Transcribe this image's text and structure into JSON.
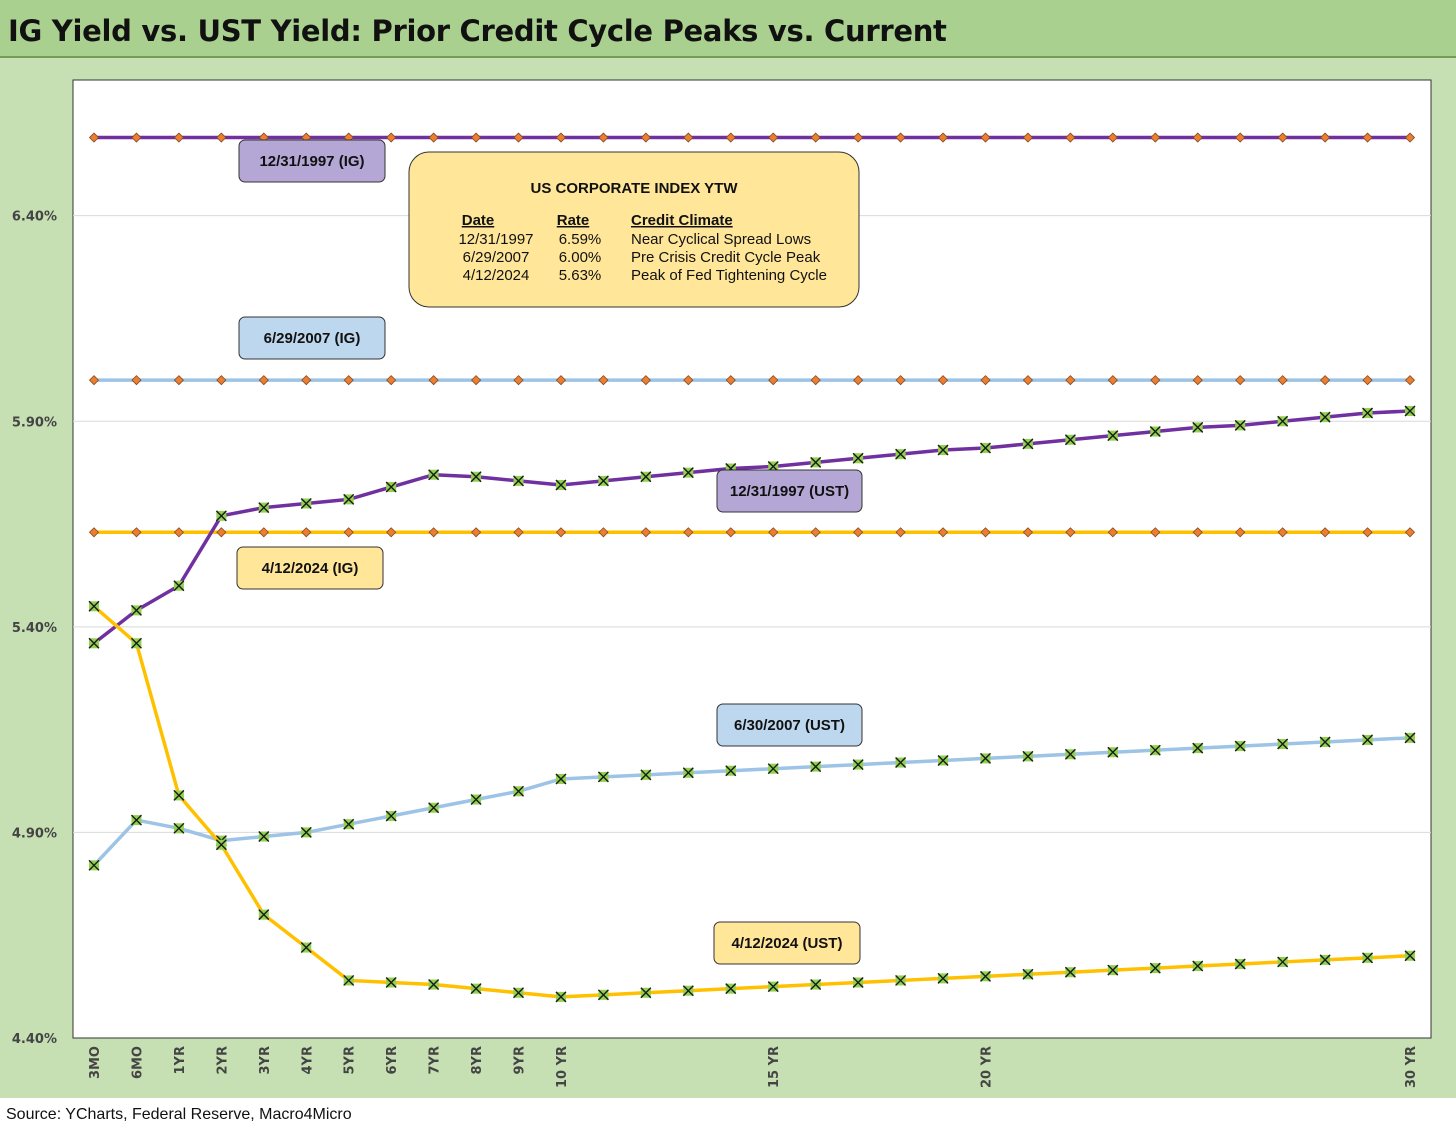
{
  "title": "IG Yield vs. UST Yield: Prior Credit Cycle Peaks vs. Current",
  "source": "Source: YCharts, Federal Reserve, Macro4Micro",
  "chart_data": {
    "type": "line",
    "title": "IG Yield vs. UST Yield: Prior Credit Cycle Peaks vs. Current",
    "x_values": [
      0.25,
      0.5,
      1,
      2,
      3,
      4,
      5,
      6,
      7,
      8,
      9,
      10,
      11,
      12,
      13,
      14,
      15,
      16,
      17,
      18,
      19,
      20,
      21,
      22,
      23,
      24,
      25,
      26,
      27,
      28,
      29,
      30
    ],
    "x_tick_labels": [
      {
        "x": 0.25,
        "label": "3MO"
      },
      {
        "x": 0.5,
        "label": "6MO"
      },
      {
        "x": 1,
        "label": "1YR"
      },
      {
        "x": 2,
        "label": "2YR"
      },
      {
        "x": 3,
        "label": "3YR"
      },
      {
        "x": 4,
        "label": "4YR"
      },
      {
        "x": 5,
        "label": "5YR"
      },
      {
        "x": 6,
        "label": "6YR"
      },
      {
        "x": 7,
        "label": "7YR"
      },
      {
        "x": 8,
        "label": "8YR"
      },
      {
        "x": 9,
        "label": "9YR"
      },
      {
        "x": 10,
        "label": "10 YR"
      },
      {
        "x": 15,
        "label": "15 YR"
      },
      {
        "x": 20,
        "label": "20 YR"
      },
      {
        "x": 30,
        "label": "30 YR"
      }
    ],
    "y_ticks": [
      "4.40%",
      "4.90%",
      "5.40%",
      "5.90%",
      "6.40%"
    ],
    "y_tick_values": [
      4.4,
      4.9,
      5.4,
      5.9,
      6.4
    ],
    "ylim": [
      4.4,
      6.73
    ],
    "grid": true,
    "colors": {
      "purple": "#7030a0",
      "lightblue": "#9dc3e6",
      "gold": "#ffc000",
      "marker_diamond": "#ed7d31",
      "marker_x_fill": "#92d050"
    },
    "series": [
      {
        "name": "12/31/1997 (IG)",
        "kind": "ig",
        "color": "#7030a0",
        "constant": 6.59
      },
      {
        "name": "6/29/2007 (IG)",
        "kind": "ig",
        "color": "#9dc3e6",
        "constant": 6.0
      },
      {
        "name": "4/12/2024 (IG)",
        "kind": "ig",
        "color": "#ffc000",
        "constant": 5.63
      },
      {
        "name": "12/31/1997 (UST)",
        "kind": "ust",
        "color": "#7030a0",
        "values": [
          5.36,
          5.44,
          5.5,
          5.67,
          5.69,
          5.7,
          5.71,
          5.74,
          5.77,
          5.765,
          5.755,
          5.745,
          5.755,
          5.765,
          5.775,
          5.785,
          5.79,
          5.8,
          5.81,
          5.82,
          5.83,
          5.835,
          5.845,
          5.855,
          5.865,
          5.875,
          5.885,
          5.89,
          5.9,
          5.91,
          5.92,
          5.925
        ]
      },
      {
        "name": "6/30/2007 (UST)",
        "kind": "ust",
        "color": "#9dc3e6",
        "values": [
          4.82,
          4.93,
          4.91,
          4.88,
          4.89,
          4.9,
          4.92,
          4.94,
          4.96,
          4.98,
          5.0,
          5.03,
          5.035,
          5.04,
          5.045,
          5.05,
          5.055,
          5.06,
          5.065,
          5.07,
          5.075,
          5.08,
          5.085,
          5.09,
          5.095,
          5.1,
          5.105,
          5.11,
          5.115,
          5.12,
          5.125,
          5.13
        ]
      },
      {
        "name": "4/12/2024 (UST)",
        "kind": "ust",
        "color": "#ffc000",
        "values": [
          5.45,
          5.36,
          4.99,
          4.87,
          4.7,
          4.62,
          4.54,
          4.535,
          4.53,
          4.52,
          4.51,
          4.5,
          4.505,
          4.51,
          4.515,
          4.52,
          4.525,
          4.53,
          4.535,
          4.54,
          4.545,
          4.55,
          4.555,
          4.56,
          4.565,
          4.57,
          4.575,
          4.58,
          4.585,
          4.59,
          4.595,
          4.6
        ]
      }
    ],
    "legend_box": {
      "title": "US CORPORATE INDEX YTW",
      "headers": [
        "Date",
        "Rate",
        "Credit Climate"
      ],
      "rows": [
        [
          "12/31/1997",
          "6.59%",
          "Near Cyclical Spread Lows"
        ],
        [
          "6/29/2007",
          "6.00%",
          "Pre Crisis Credit Cycle Peak"
        ],
        [
          "4/12/2024",
          "5.63%",
          "Peak of Fed Tightening Cycle"
        ]
      ]
    },
    "tags": [
      {
        "text": "12/31/1997 (IG)",
        "fill": "#b4a7d6"
      },
      {
        "text": "6/29/2007 (IG)",
        "fill": "#bdd7ee"
      },
      {
        "text": "12/31/1997 (UST)",
        "fill": "#b4a7d6"
      },
      {
        "text": "4/12/2024 (IG)",
        "fill": "#ffe699"
      },
      {
        "text": "6/30/2007 (UST)",
        "fill": "#bdd7ee"
      },
      {
        "text": "4/12/2024 (UST)",
        "fill": "#ffe699"
      }
    ]
  }
}
